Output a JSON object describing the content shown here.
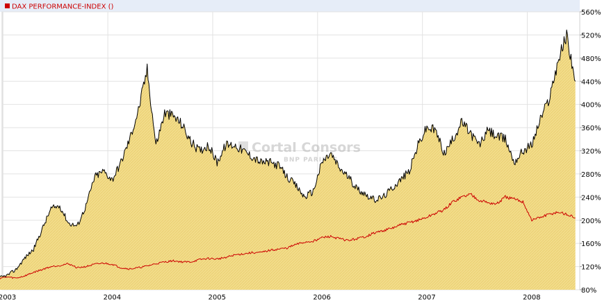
{
  "chart_data": {
    "type": "area",
    "title": "",
    "legend": [
      {
        "label": "DAX PERFORMANCE-INDEX ()",
        "color": "#cc0000"
      }
    ],
    "legend_placement": "top-left",
    "grid": true,
    "watermark": {
      "line1": "Cortal Consors",
      "line2": "BNP PARIBAS"
    },
    "x_ticks": [
      "2003",
      "2004",
      "2005",
      "2006",
      "2007",
      "2008"
    ],
    "xlim": [
      "2003-01",
      "2008-06"
    ],
    "y_ticks": [
      "80%",
      "120%",
      "160%",
      "200%",
      "240%",
      "280%",
      "320%",
      "360%",
      "400%",
      "440%",
      "480%",
      "520%",
      "560%"
    ],
    "ylim": [
      80,
      560
    ],
    "y_unit": "%",
    "series": [
      {
        "color": "#000000",
        "fill": "#f2dc8a",
        "x": [
          "2002-12",
          "2003-01",
          "2003-02",
          "2003-03",
          "2003-04",
          "2003-05",
          "2003-06",
          "2003-07",
          "2003-08",
          "2003-09",
          "2003-10",
          "2003-11",
          "2003-12",
          "2004-01",
          "2004-02",
          "2004-03",
          "2004-04",
          "2004-05",
          "2004-06",
          "2004-07",
          "2004-08",
          "2004-09",
          "2004-10",
          "2004-11",
          "2004-12",
          "2005-01",
          "2005-02",
          "2005-03",
          "2005-04",
          "2005-05",
          "2005-06",
          "2005-07",
          "2005-08",
          "2005-09",
          "2005-10",
          "2005-11",
          "2005-12",
          "2006-01",
          "2006-02",
          "2006-03",
          "2006-04",
          "2006-05",
          "2006-06",
          "2006-07",
          "2006-08",
          "2006-09",
          "2006-10",
          "2006-11",
          "2006-12",
          "2007-01",
          "2007-02",
          "2007-03",
          "2007-04",
          "2007-05",
          "2007-06",
          "2007-07",
          "2007-08",
          "2007-09",
          "2007-10",
          "2007-11",
          "2007-12",
          "2008-01",
          "2008-02",
          "2008-03",
          "2008-04",
          "2008-05",
          "2008-06"
        ],
        "values": [
          100,
          105,
          115,
          135,
          150,
          185,
          220,
          225,
          195,
          190,
          225,
          275,
          285,
          270,
          300,
          340,
          390,
          460,
          330,
          385,
          380,
          365,
          335,
          320,
          330,
          300,
          330,
          330,
          320,
          310,
          300,
          300,
          295,
          275,
          260,
          240,
          250,
          300,
          315,
          290,
          275,
          255,
          245,
          235,
          240,
          255,
          270,
          285,
          330,
          360,
          355,
          315,
          340,
          370,
          350,
          330,
          355,
          345,
          340,
          300,
          320,
          330,
          375,
          410,
          475,
          520,
          440
        ]
      },
      {
        "color": "#cc0000",
        "x": [
          "2002-12",
          "2003-01",
          "2003-02",
          "2003-03",
          "2003-04",
          "2003-05",
          "2003-06",
          "2003-07",
          "2003-08",
          "2003-09",
          "2003-10",
          "2003-11",
          "2003-12",
          "2004-01",
          "2004-02",
          "2004-03",
          "2004-04",
          "2004-05",
          "2004-06",
          "2004-07",
          "2004-08",
          "2004-09",
          "2004-10",
          "2004-11",
          "2004-12",
          "2005-01",
          "2005-02",
          "2005-03",
          "2005-04",
          "2005-05",
          "2005-06",
          "2005-07",
          "2005-08",
          "2005-09",
          "2005-10",
          "2005-11",
          "2005-12",
          "2006-01",
          "2006-02",
          "2006-03",
          "2006-04",
          "2006-05",
          "2006-06",
          "2006-07",
          "2006-08",
          "2006-09",
          "2006-10",
          "2006-11",
          "2006-12",
          "2007-01",
          "2007-02",
          "2007-03",
          "2007-04",
          "2007-05",
          "2007-06",
          "2007-07",
          "2007-08",
          "2007-09",
          "2007-10",
          "2007-11",
          "2007-12",
          "2008-01",
          "2008-02",
          "2008-03",
          "2008-04",
          "2008-05",
          "2008-06"
        ],
        "values": [
          100,
          102,
          100,
          104,
          110,
          115,
          120,
          122,
          125,
          118,
          120,
          124,
          126,
          124,
          118,
          116,
          118,
          121,
          125,
          128,
          130,
          128,
          128,
          132,
          134,
          133,
          136,
          140,
          142,
          144,
          144,
          148,
          150,
          152,
          158,
          162,
          164,
          170,
          172,
          168,
          165,
          168,
          172,
          178,
          182,
          186,
          192,
          196,
          200,
          205,
          212,
          218,
          232,
          240,
          245,
          235,
          230,
          228,
          240,
          236,
          232,
          200,
          205,
          210,
          214,
          210,
          204
        ]
      }
    ]
  }
}
